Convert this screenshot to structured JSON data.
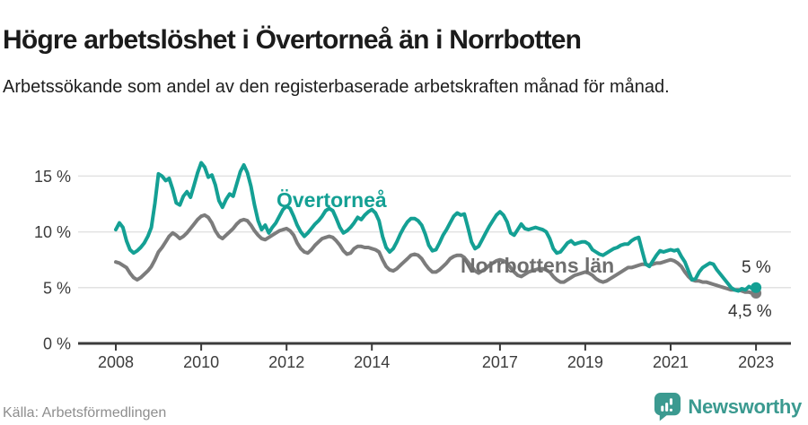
{
  "header": {
    "title": "Högre arbetslöshet i Övertorneå än i Norrbotten",
    "subtitle": "Arbetssökande som andel av den registerbaserade arbetskraften månad för månad."
  },
  "footer": {
    "source": "Källa: Arbetsförmedlingen",
    "brand": "Newsworthy"
  },
  "colors": {
    "overtornea_teal": "#14A094",
    "norrbotten_gray": "#7C7C7C",
    "brand_teal": "#3B9A90",
    "axis_text": "#3C3C3C",
    "grid": "#E2E2E2"
  },
  "chart_data": {
    "type": "line",
    "title": "Högre arbetslöshet i Övertorneå än i Norrbotten",
    "x_unit": "month",
    "x_start_year": 2008,
    "x_end_year": 2023,
    "x_tick_years": [
      2008,
      2010,
      2012,
      2014,
      2017,
      2019,
      2021,
      2023
    ],
    "x_tick_labels": [
      "2008",
      "2010",
      "2012",
      "2014",
      "2017",
      "2019",
      "2021",
      "2023"
    ],
    "y_tick_values": [
      0,
      5,
      10,
      15
    ],
    "y_tick_labels": [
      "0 %",
      "5 %",
      "10 %",
      "15 %"
    ],
    "ylim": [
      0,
      17
    ],
    "grid": "horizontal",
    "legend_position": "inline-labels",
    "series": [
      {
        "name": "Övertorneå",
        "color": "#14A094",
        "end_label": "5 %",
        "last_value": 5.0,
        "values": [
          10.2,
          10.8,
          10.4,
          9.2,
          8.4,
          8.1,
          8.3,
          8.6,
          9.0,
          9.6,
          10.4,
          12.6,
          15.2,
          15.0,
          14.6,
          14.8,
          13.8,
          12.6,
          12.4,
          13.2,
          13.6,
          13.1,
          14.2,
          15.3,
          16.2,
          15.8,
          14.9,
          15.1,
          14.2,
          12.8,
          12.2,
          12.9,
          13.4,
          13.2,
          14.3,
          15.4,
          16.0,
          15.3,
          14.1,
          12.4,
          11.0,
          10.2,
          10.6,
          9.9,
          10.4,
          10.8,
          11.4,
          12.0,
          12.3,
          12.1,
          11.4,
          10.6,
          10.0,
          9.6,
          9.9,
          10.3,
          10.7,
          11.0,
          11.4,
          11.9,
          12.1,
          11.9,
          11.2,
          10.4,
          9.9,
          10.1,
          10.4,
          10.8,
          11.3,
          11.1,
          11.5,
          11.8,
          12.0,
          11.7,
          11.0,
          9.6,
          8.6,
          8.2,
          8.5,
          9.1,
          9.8,
          10.4,
          10.9,
          11.2,
          11.2,
          11.0,
          10.6,
          9.8,
          8.8,
          8.3,
          8.4,
          9.0,
          9.7,
          10.2,
          10.8,
          11.4,
          11.7,
          11.5,
          11.6,
          10.4,
          9.1,
          8.5,
          8.7,
          9.3,
          9.9,
          10.5,
          11.0,
          11.5,
          11.8,
          11.5,
          10.9,
          9.9,
          9.7,
          10.2,
          10.7,
          10.3,
          10.2,
          10.3,
          10.4,
          10.3,
          10.2,
          10.0,
          9.4,
          8.5,
          8.1,
          8.2,
          8.6,
          9.0,
          9.2,
          8.9,
          9.0,
          9.1,
          9.1,
          8.9,
          8.4,
          8.2,
          8.0,
          7.9,
          8.1,
          8.3,
          8.5,
          8.6,
          8.8,
          8.9,
          8.9,
          9.2,
          9.4,
          9.5,
          8.3,
          7.1,
          6.9,
          7.4,
          7.9,
          8.3,
          8.2,
          8.3,
          8.4,
          8.3,
          8.4,
          7.8,
          7.3,
          6.5,
          5.7,
          5.8,
          6.4,
          6.8,
          7.0,
          7.2,
          7.1,
          6.6,
          6.2,
          5.8,
          5.4,
          5.0,
          4.8,
          4.7,
          4.9,
          4.8,
          5.1,
          4.9,
          5.0
        ]
      },
      {
        "name": "Norrbottens län",
        "color": "#7C7C7C",
        "end_label": "4,5 %",
        "last_value": 4.5,
        "values": [
          7.3,
          7.2,
          7.0,
          6.8,
          6.3,
          5.9,
          5.7,
          5.9,
          6.2,
          6.5,
          6.9,
          7.5,
          8.2,
          8.6,
          9.1,
          9.6,
          9.9,
          9.7,
          9.4,
          9.6,
          9.9,
          10.3,
          10.7,
          11.1,
          11.4,
          11.5,
          11.3,
          10.8,
          10.1,
          9.6,
          9.4,
          9.7,
          10.0,
          10.3,
          10.7,
          11.0,
          11.1,
          11.0,
          10.6,
          10.1,
          9.7,
          9.4,
          9.3,
          9.5,
          9.7,
          9.9,
          10.1,
          10.2,
          10.3,
          10.1,
          9.7,
          9.0,
          8.5,
          8.2,
          8.1,
          8.4,
          8.8,
          9.1,
          9.4,
          9.5,
          9.6,
          9.5,
          9.2,
          8.8,
          8.3,
          8.0,
          8.1,
          8.5,
          8.7,
          8.7,
          8.6,
          8.6,
          8.5,
          8.4,
          8.2,
          7.5,
          6.9,
          6.6,
          6.5,
          6.7,
          7.0,
          7.3,
          7.6,
          7.9,
          8.0,
          7.9,
          7.6,
          7.1,
          6.7,
          6.4,
          6.4,
          6.6,
          6.9,
          7.2,
          7.6,
          7.8,
          7.9,
          7.9,
          7.7,
          7.3,
          6.9,
          6.5,
          6.3,
          6.5,
          6.7,
          7.0,
          7.2,
          7.4,
          7.5,
          7.4,
          7.2,
          6.8,
          6.4,
          6.1,
          6.0,
          6.2,
          6.4,
          6.5,
          6.6,
          6.7,
          6.7,
          6.6,
          6.4,
          6.0,
          5.7,
          5.5,
          5.5,
          5.7,
          5.9,
          6.1,
          6.2,
          6.3,
          6.4,
          6.3,
          6.1,
          5.8,
          5.6,
          5.5,
          5.6,
          5.8,
          6.0,
          6.2,
          6.4,
          6.6,
          6.8,
          6.8,
          6.9,
          7.0,
          7.1,
          7.1,
          7.0,
          7.1,
          7.2,
          7.2,
          7.3,
          7.4,
          7.5,
          7.4,
          7.2,
          6.9,
          6.4,
          6.0,
          5.7,
          5.6,
          5.6,
          5.5,
          5.5,
          5.4,
          5.3,
          5.2,
          5.1,
          5.0,
          4.9,
          4.8,
          4.8,
          4.8,
          4.7,
          4.6,
          4.6,
          4.5,
          4.5
        ]
      }
    ]
  }
}
